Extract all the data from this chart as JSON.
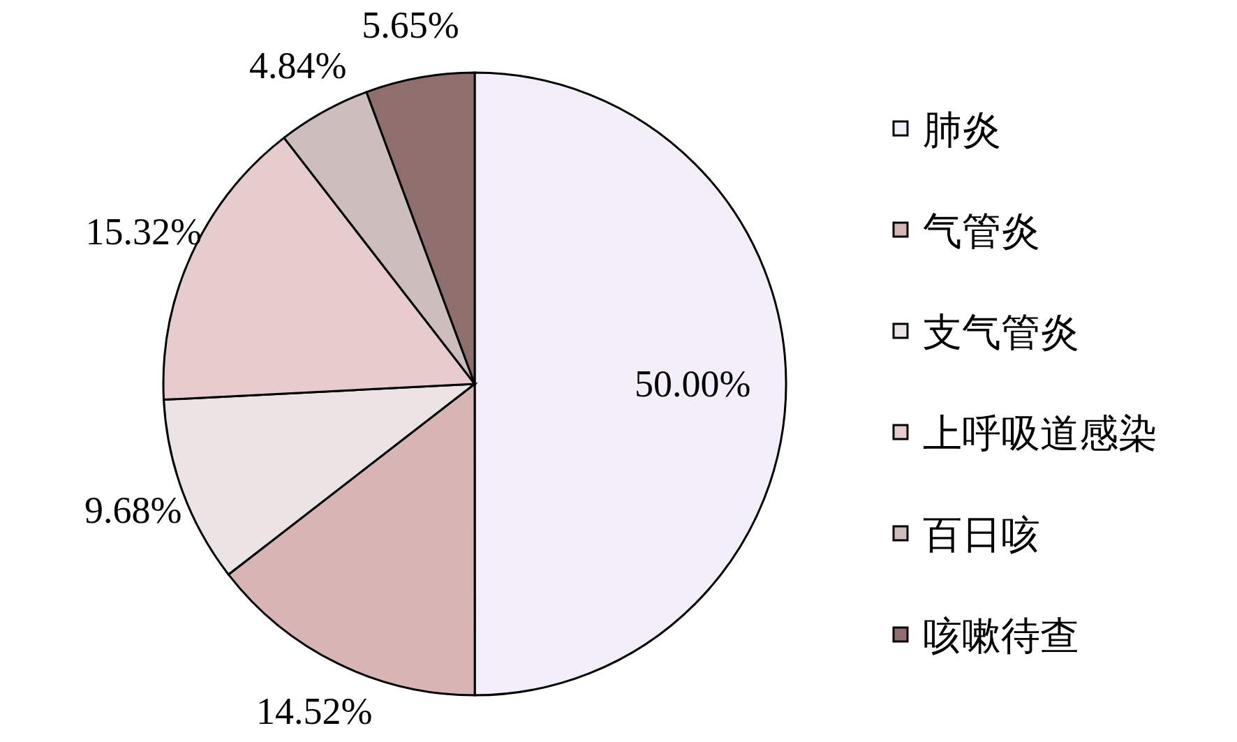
{
  "chart_data": {
    "type": "pie",
    "categories": [
      "肺炎",
      "气管炎",
      "支气管炎",
      "上呼吸道感染",
      "百日咳",
      "咳嗽待查"
    ],
    "values": [
      50.0,
      14.52,
      9.68,
      15.32,
      4.84,
      5.65
    ],
    "value_labels": [
      "50.00%",
      "14.52%",
      "9.68%",
      "15.32%",
      "4.84%",
      "5.65%"
    ],
    "colors": [
      "#f3effa",
      "#d8b4b4",
      "#ece4e4",
      "#e6cccc",
      "#cdbdbd",
      "#8f6e6e"
    ],
    "legend": "right"
  }
}
